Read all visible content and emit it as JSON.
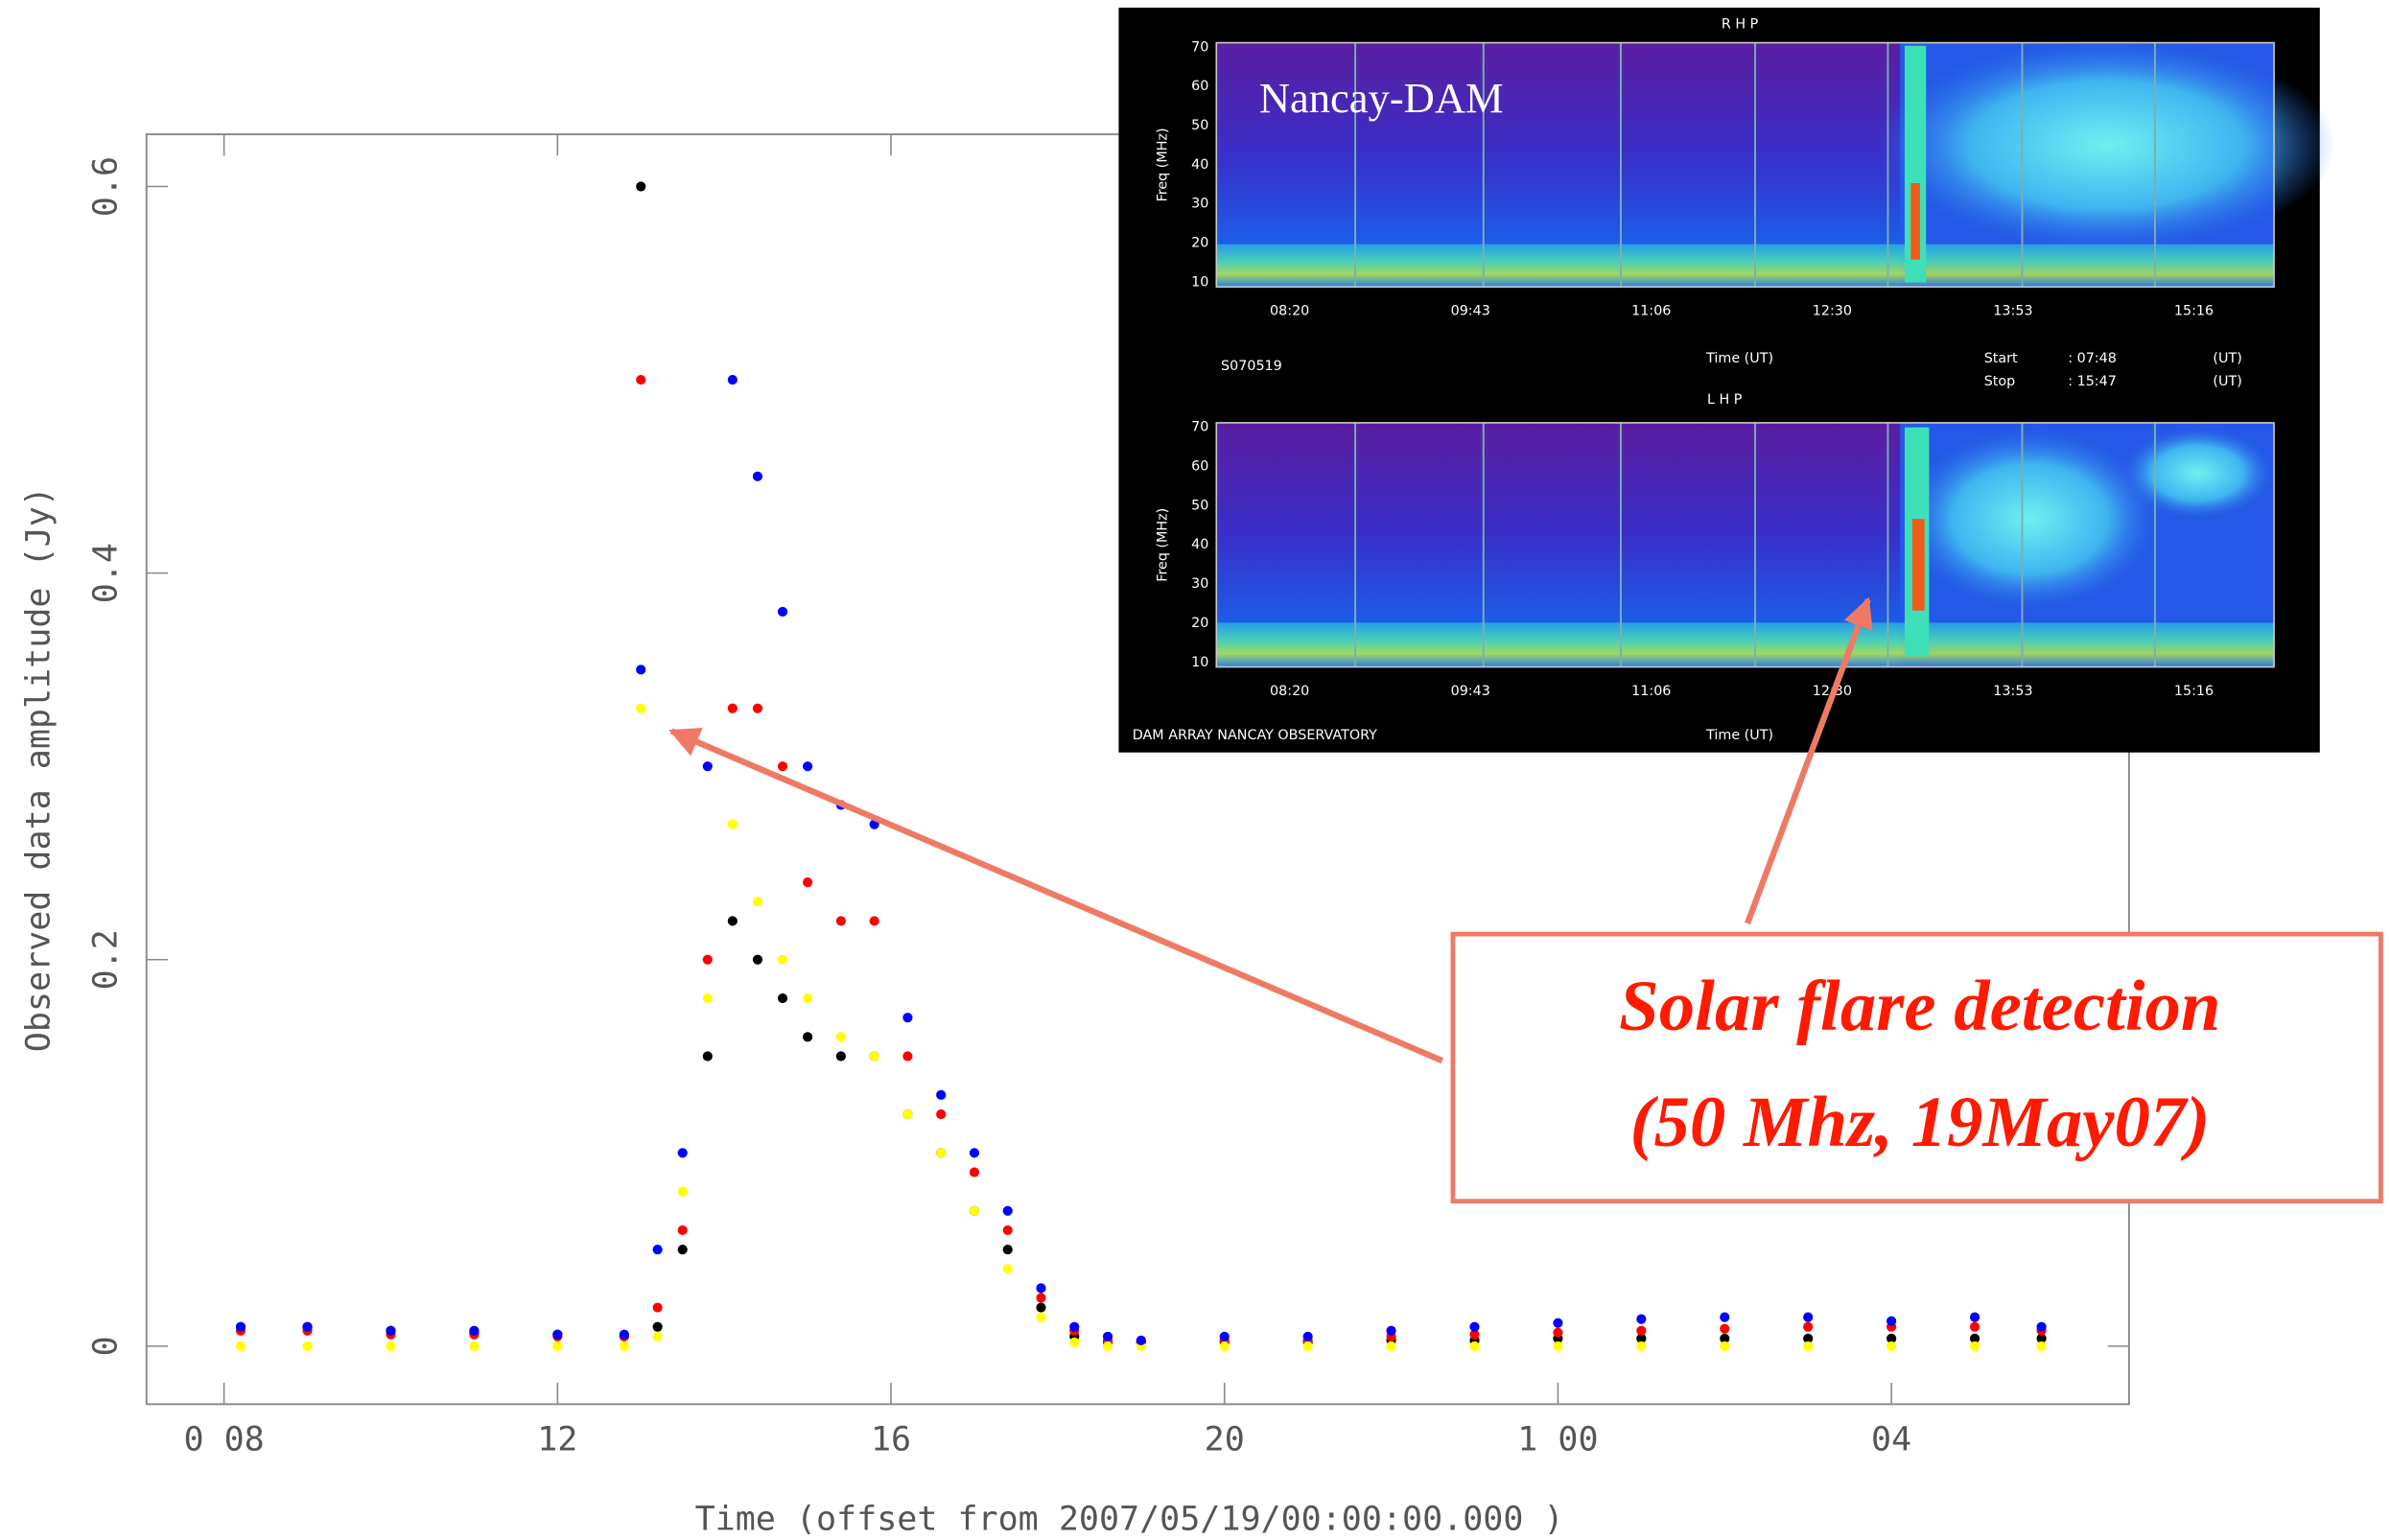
{
  "chart_data": {
    "type": "scatter",
    "xlabel": "Time (offset from  2007/05/19/00:00:00.000 )",
    "ylabel": "Observed data amplitude (Jy)",
    "x": [
      8.2,
      9,
      10,
      11,
      12,
      12.8,
      13.0,
      13.2,
      13.5,
      13.8,
      14.1,
      14.4,
      14.7,
      15.0,
      15.4,
      15.8,
      16.2,
      16.6,
      17.0,
      17.4,
      17.8,
      18.2,
      18.6,
      19,
      20,
      21,
      22,
      23,
      24,
      25,
      26,
      27,
      28,
      29,
      29.8
    ],
    "series": [
      {
        "color": "#000000",
        "values": [
          0.01,
          0.01,
          0.008,
          0.007,
          0.006,
          0.005,
          0.6,
          0.01,
          0.05,
          0.15,
          0.22,
          0.2,
          0.18,
          0.16,
          0.15,
          0.15,
          0.12,
          0.1,
          0.07,
          0.05,
          0.02,
          0.005,
          0.002,
          0.002,
          0.002,
          0.002,
          0.003,
          0.003,
          0.004,
          0.004,
          0.004,
          0.004,
          0.004,
          0.004,
          0.004
        ]
      },
      {
        "color": "#ff0000",
        "values": [
          0.008,
          0.008,
          0.006,
          0.006,
          0.005,
          0.005,
          0.5,
          0.02,
          0.06,
          0.2,
          0.33,
          0.33,
          0.3,
          0.24,
          0.22,
          0.22,
          0.15,
          0.12,
          0.09,
          0.06,
          0.025,
          0.008,
          0.003,
          0.002,
          0.003,
          0.003,
          0.005,
          0.006,
          0.007,
          0.008,
          0.009,
          0.01,
          0.01,
          0.01,
          0.008
        ]
      },
      {
        "color": "#ffff00",
        "values": [
          0,
          0,
          0,
          0,
          0,
          0,
          0.33,
          0.005,
          0.08,
          0.18,
          0.27,
          0.23,
          0.2,
          0.18,
          0.16,
          0.15,
          0.12,
          0.1,
          0.07,
          0.04,
          0.015,
          0.002,
          0,
          0,
          0,
          0,
          0,
          0,
          0,
          0,
          0,
          0,
          0,
          0,
          0
        ]
      },
      {
        "color": "#0000ff",
        "values": [
          0.01,
          0.01,
          0.008,
          0.008,
          0.006,
          0.006,
          0.35,
          0.05,
          0.1,
          0.3,
          0.5,
          0.45,
          0.38,
          0.3,
          0.28,
          0.27,
          0.17,
          0.13,
          0.1,
          0.07,
          0.03,
          0.01,
          0.005,
          0.003,
          0.005,
          0.005,
          0.008,
          0.01,
          0.012,
          0.014,
          0.015,
          0.015,
          0.013,
          0.015,
          0.01
        ]
      }
    ],
    "xlim": [
      7.07,
      30.85
    ],
    "ylim": [
      -0.03,
      0.627
    ],
    "xticks": [
      {
        "value": 8,
        "label": "0 08"
      },
      12,
      16,
      20,
      {
        "value": 24,
        "label": "1 00"
      },
      {
        "value": 28,
        "label": "04"
      }
    ],
    "yticks": [
      0,
      0.2,
      0.4,
      0.6
    ]
  },
  "inset": {
    "title": "Nancay-DAM",
    "panels": [
      {
        "title": "R H P"
      },
      {
        "title": "L H P"
      }
    ],
    "freq_label": "Freq (MHz)",
    "freq_ticks": [
      "10",
      "20",
      "30",
      "40",
      "50",
      "60",
      "70"
    ],
    "time_ticks": [
      "08:20",
      "09:43",
      "11:06",
      "12:30",
      "13:53",
      "15:16"
    ],
    "time_label": "Time (UT)",
    "id": "S070519",
    "start_label": "Start",
    "start": ":   07:48",
    "start_unit": "(UT)",
    "stop_label": "Stop",
    "stop": ":   15:47",
    "stop_unit": "(UT)",
    "footer": "DAM ARRAY   NANCAY OBSERVATORY"
  },
  "annotation": {
    "lines": [
      "Solar flare detection",
      "(50 Mhz, 19May07)"
    ]
  }
}
